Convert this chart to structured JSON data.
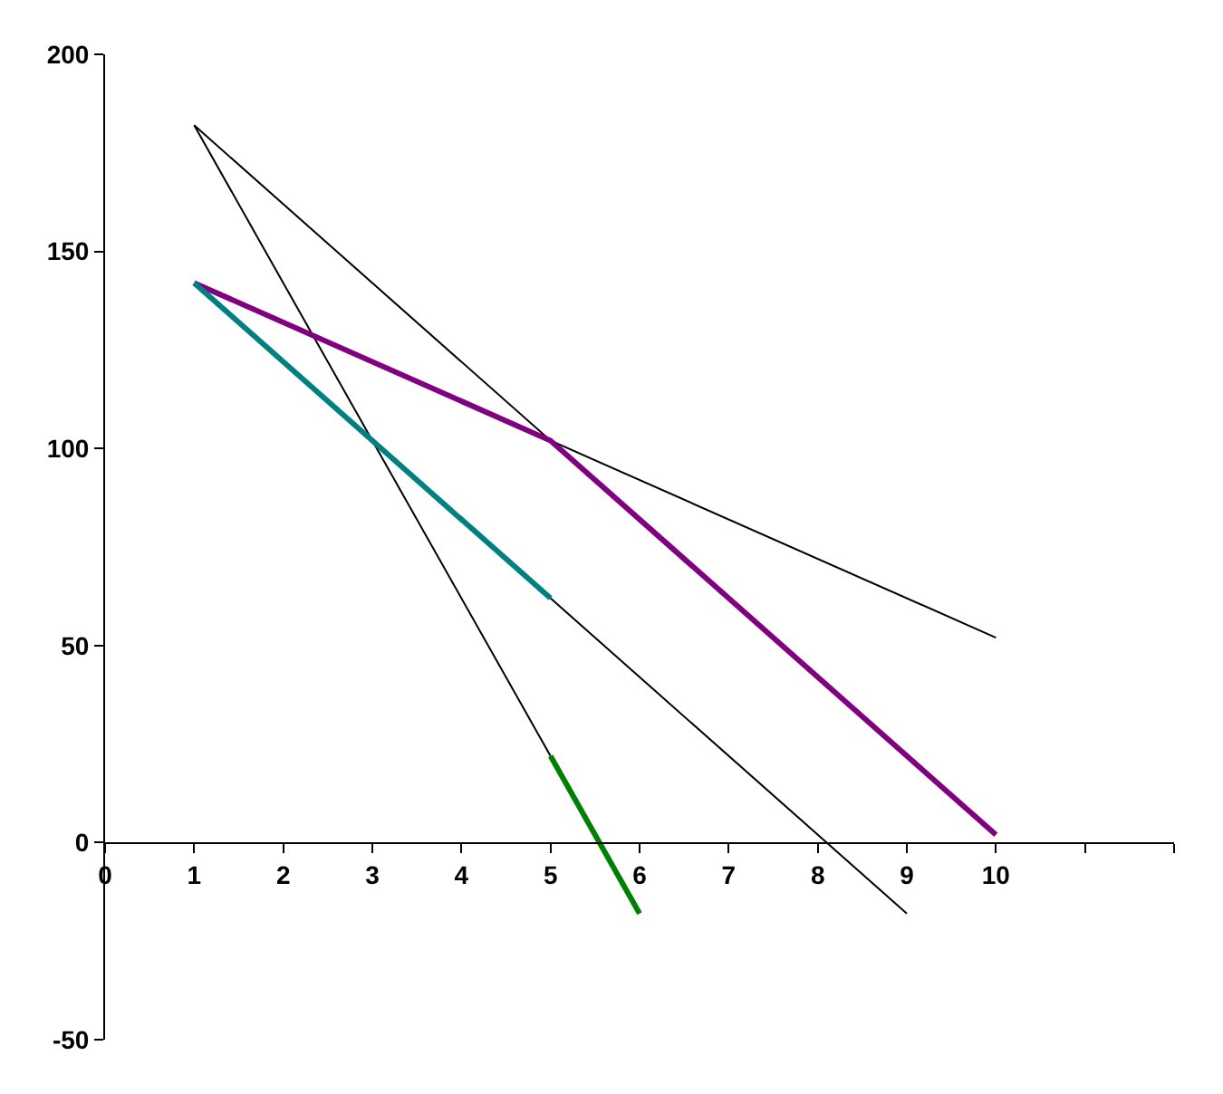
{
  "chart_data": {
    "type": "line",
    "series": [
      {
        "color": "#000000",
        "x": [
          1,
          5,
          10
        ],
        "values": [
          182,
          102,
          52
        ]
      },
      {
        "color": "#000000",
        "x": [
          1,
          5
        ],
        "values": [
          182,
          22
        ]
      },
      {
        "color": "#000000",
        "x": [
          5,
          9
        ],
        "values": [
          62,
          -18
        ]
      },
      {
        "color": "#800080",
        "x": [
          1,
          5,
          10
        ],
        "values": [
          142,
          102,
          2
        ]
      },
      {
        "color": "#008080",
        "x": [
          1,
          5
        ],
        "values": [
          142,
          62
        ]
      },
      {
        "color": "#008000",
        "x": [
          5,
          6
        ],
        "values": [
          22,
          -18
        ]
      }
    ],
    "xlim": [
      0,
      12
    ],
    "xticks": [
      0,
      1,
      2,
      3,
      4,
      5,
      6,
      7,
      8,
      9,
      10,
      {
        "value": 11,
        "label": null
      },
      {
        "value": 12,
        "label": null
      }
    ],
    "ylim": [
      -50,
      200
    ],
    "yticks": [
      -50,
      0,
      50,
      100,
      150,
      200
    ],
    "marker": "none",
    "line_style": "solid"
  }
}
